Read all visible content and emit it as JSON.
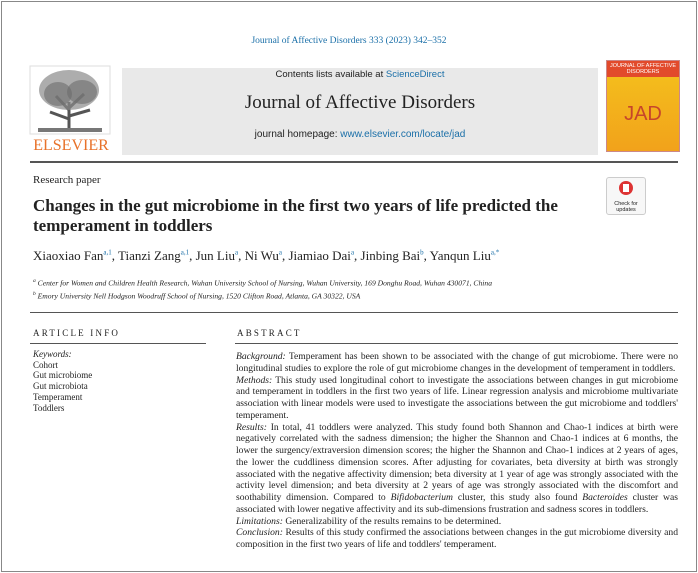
{
  "journal_ref": "Journal of Affective Disorders 333 (2023) 342–352",
  "header": {
    "publisher": "ELSEVIER",
    "contents_prefix": "Contents lists available at",
    "contents_link": "ScienceDirect",
    "journal_title": "Journal of Affective Disorders",
    "homepage_prefix": "journal homepage:",
    "homepage_link": "www.elsevier.com/locate/jad",
    "cover_title": "JOURNAL OF AFFECTIVE DISORDERS",
    "cover_logo": "JAD"
  },
  "check_updates": "Check for updates",
  "article_type": "Research paper",
  "title": "Changes in the gut microbiome in the first two years of life predicted the temperament in toddlers",
  "authors": [
    {
      "name": "Xiaoxiao Fan",
      "sup": "a,1",
      "sep": ","
    },
    {
      "name": "Tianzi Zang",
      "sup": "a,1",
      "sep": ","
    },
    {
      "name": "Jun Liu",
      "sup": "a",
      "sep": ","
    },
    {
      "name": "Ni Wu",
      "sup": "a",
      "sep": ","
    },
    {
      "name": "Jiamiao Dai",
      "sup": "a",
      "sep": ","
    },
    {
      "name": "Jinbing Bai",
      "sup": "b",
      "sep": ","
    },
    {
      "name": "Yanqun Liu",
      "sup": "a,*"
    }
  ],
  "affiliations": [
    {
      "mark": "a",
      "text": "Center for Women and Children Health Research, Wuhan University School of Nursing, Wuhan University, 169 Donghu Road, Wuhan 430071, China"
    },
    {
      "mark": "b",
      "text": "Emory University Nell Hodgson Woodruff School of Nursing, 1520 Clifton Road, Atlanta, GA 30322, USA"
    }
  ],
  "article_info": {
    "heading": "ARTICLE INFO",
    "keywords_label": "Keywords:",
    "keywords": [
      "Cohort",
      "Gut microbiome",
      "Gut microbiota",
      "Temperament",
      "Toddlers"
    ]
  },
  "abstract": {
    "heading": "ABSTRACT",
    "background": {
      "label": "Background:",
      "text": "Temperament has been shown to be associated with the change of gut microbiome. There were no longitudinal studies to explore the role of gut microbiome changes in the development of temperament in toddlers."
    },
    "methods": {
      "label": "Methods:",
      "text": "This study used longitudinal cohort to investigate the associations between changes in gut microbiome and temperament in toddlers in the first two years of life. Linear regression analysis and microbiome multivariate association with linear models were used to investigate the associations between the gut microbiome and toddlers' temperament."
    },
    "results": {
      "label": "Results:",
      "text_1": "In total, 41 toddlers were analyzed. This study found both Shannon and Chao-1 indices at birth were negatively correlated with the sadness dimension; the higher the Shannon and Chao-1 indices at 6 months, the lower the surgency/extraversion dimension scores; the higher the Shannon and Chao-1 indices at 2 years of ages, the lower the cuddliness dimension scores. After adjusting for covariates, beta diversity at birth was strongly associated with the negative affectivity dimension; beta diversity at 1 year of age was strongly associated with the activity level dimension; and beta diversity at 2 years of age was strongly associated with the discomfort and soothability dimension. Compared to",
      "genus_1": "Bifidobacterium",
      "text_2": "cluster, this study also found",
      "genus_2": "Bacteroides",
      "text_3": "cluster was associated with lower negative affectivity and its sub-dimensions frustration and sadness scores in toddlers."
    },
    "limitations": {
      "label": "Limitations:",
      "text": "Generalizability of the results remains to be determined."
    },
    "conclusion": {
      "label": "Conclusion:",
      "text": "Results of this study confirmed the associations between changes in the gut microbiome diversity and composition in the first two years of life and toddlers' temperament."
    }
  }
}
